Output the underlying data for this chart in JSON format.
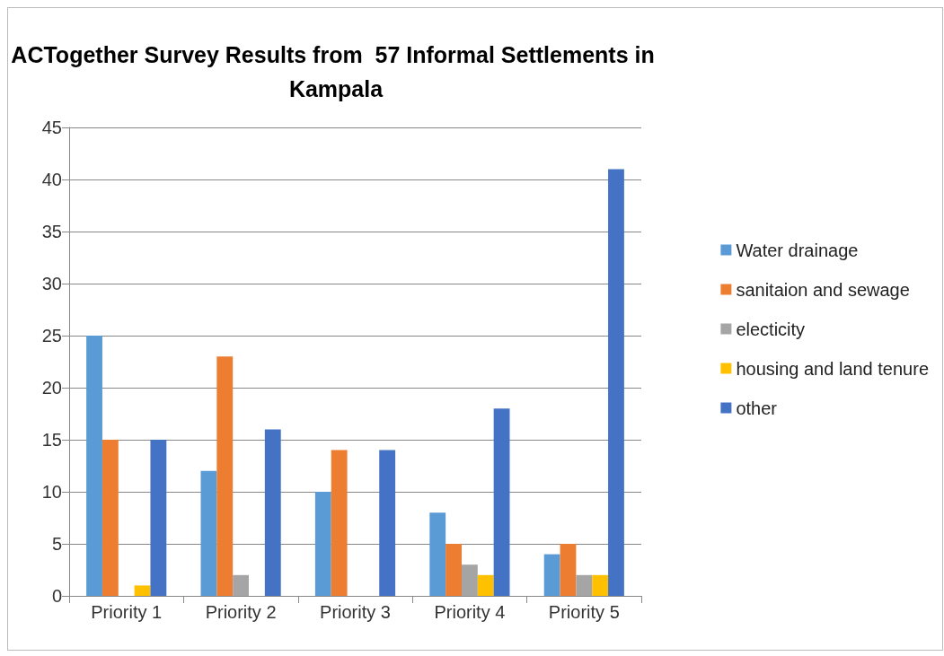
{
  "chart_data": {
    "type": "bar",
    "title": "ACTogether Survey Results from  57 Informal Settlements in Kampala",
    "categories": [
      "Priority 1",
      "Priority 2",
      "Priority 3",
      "Priority 4",
      "Priority 5"
    ],
    "series": [
      {
        "name": "Water drainage",
        "color": "#5b9bd5",
        "values": [
          25,
          12,
          10,
          8,
          4
        ]
      },
      {
        "name": "sanitaion and sewage",
        "color": "#ed7d31",
        "values": [
          15,
          23,
          14,
          5,
          5
        ]
      },
      {
        "name": "electicity",
        "color": "#a5a5a5",
        "values": [
          0,
          2,
          0,
          3,
          2
        ]
      },
      {
        "name": "housing and land tenure",
        "color": "#ffc000",
        "values": [
          1,
          0,
          0,
          2,
          2
        ]
      },
      {
        "name": "other",
        "color": "#4472c4",
        "values": [
          15,
          16,
          14,
          18,
          41
        ]
      }
    ],
    "ylim": [
      0,
      45
    ],
    "yticks": [
      0,
      5,
      10,
      15,
      20,
      25,
      30,
      35,
      40,
      45
    ],
    "grid": "y",
    "legend": "right"
  }
}
